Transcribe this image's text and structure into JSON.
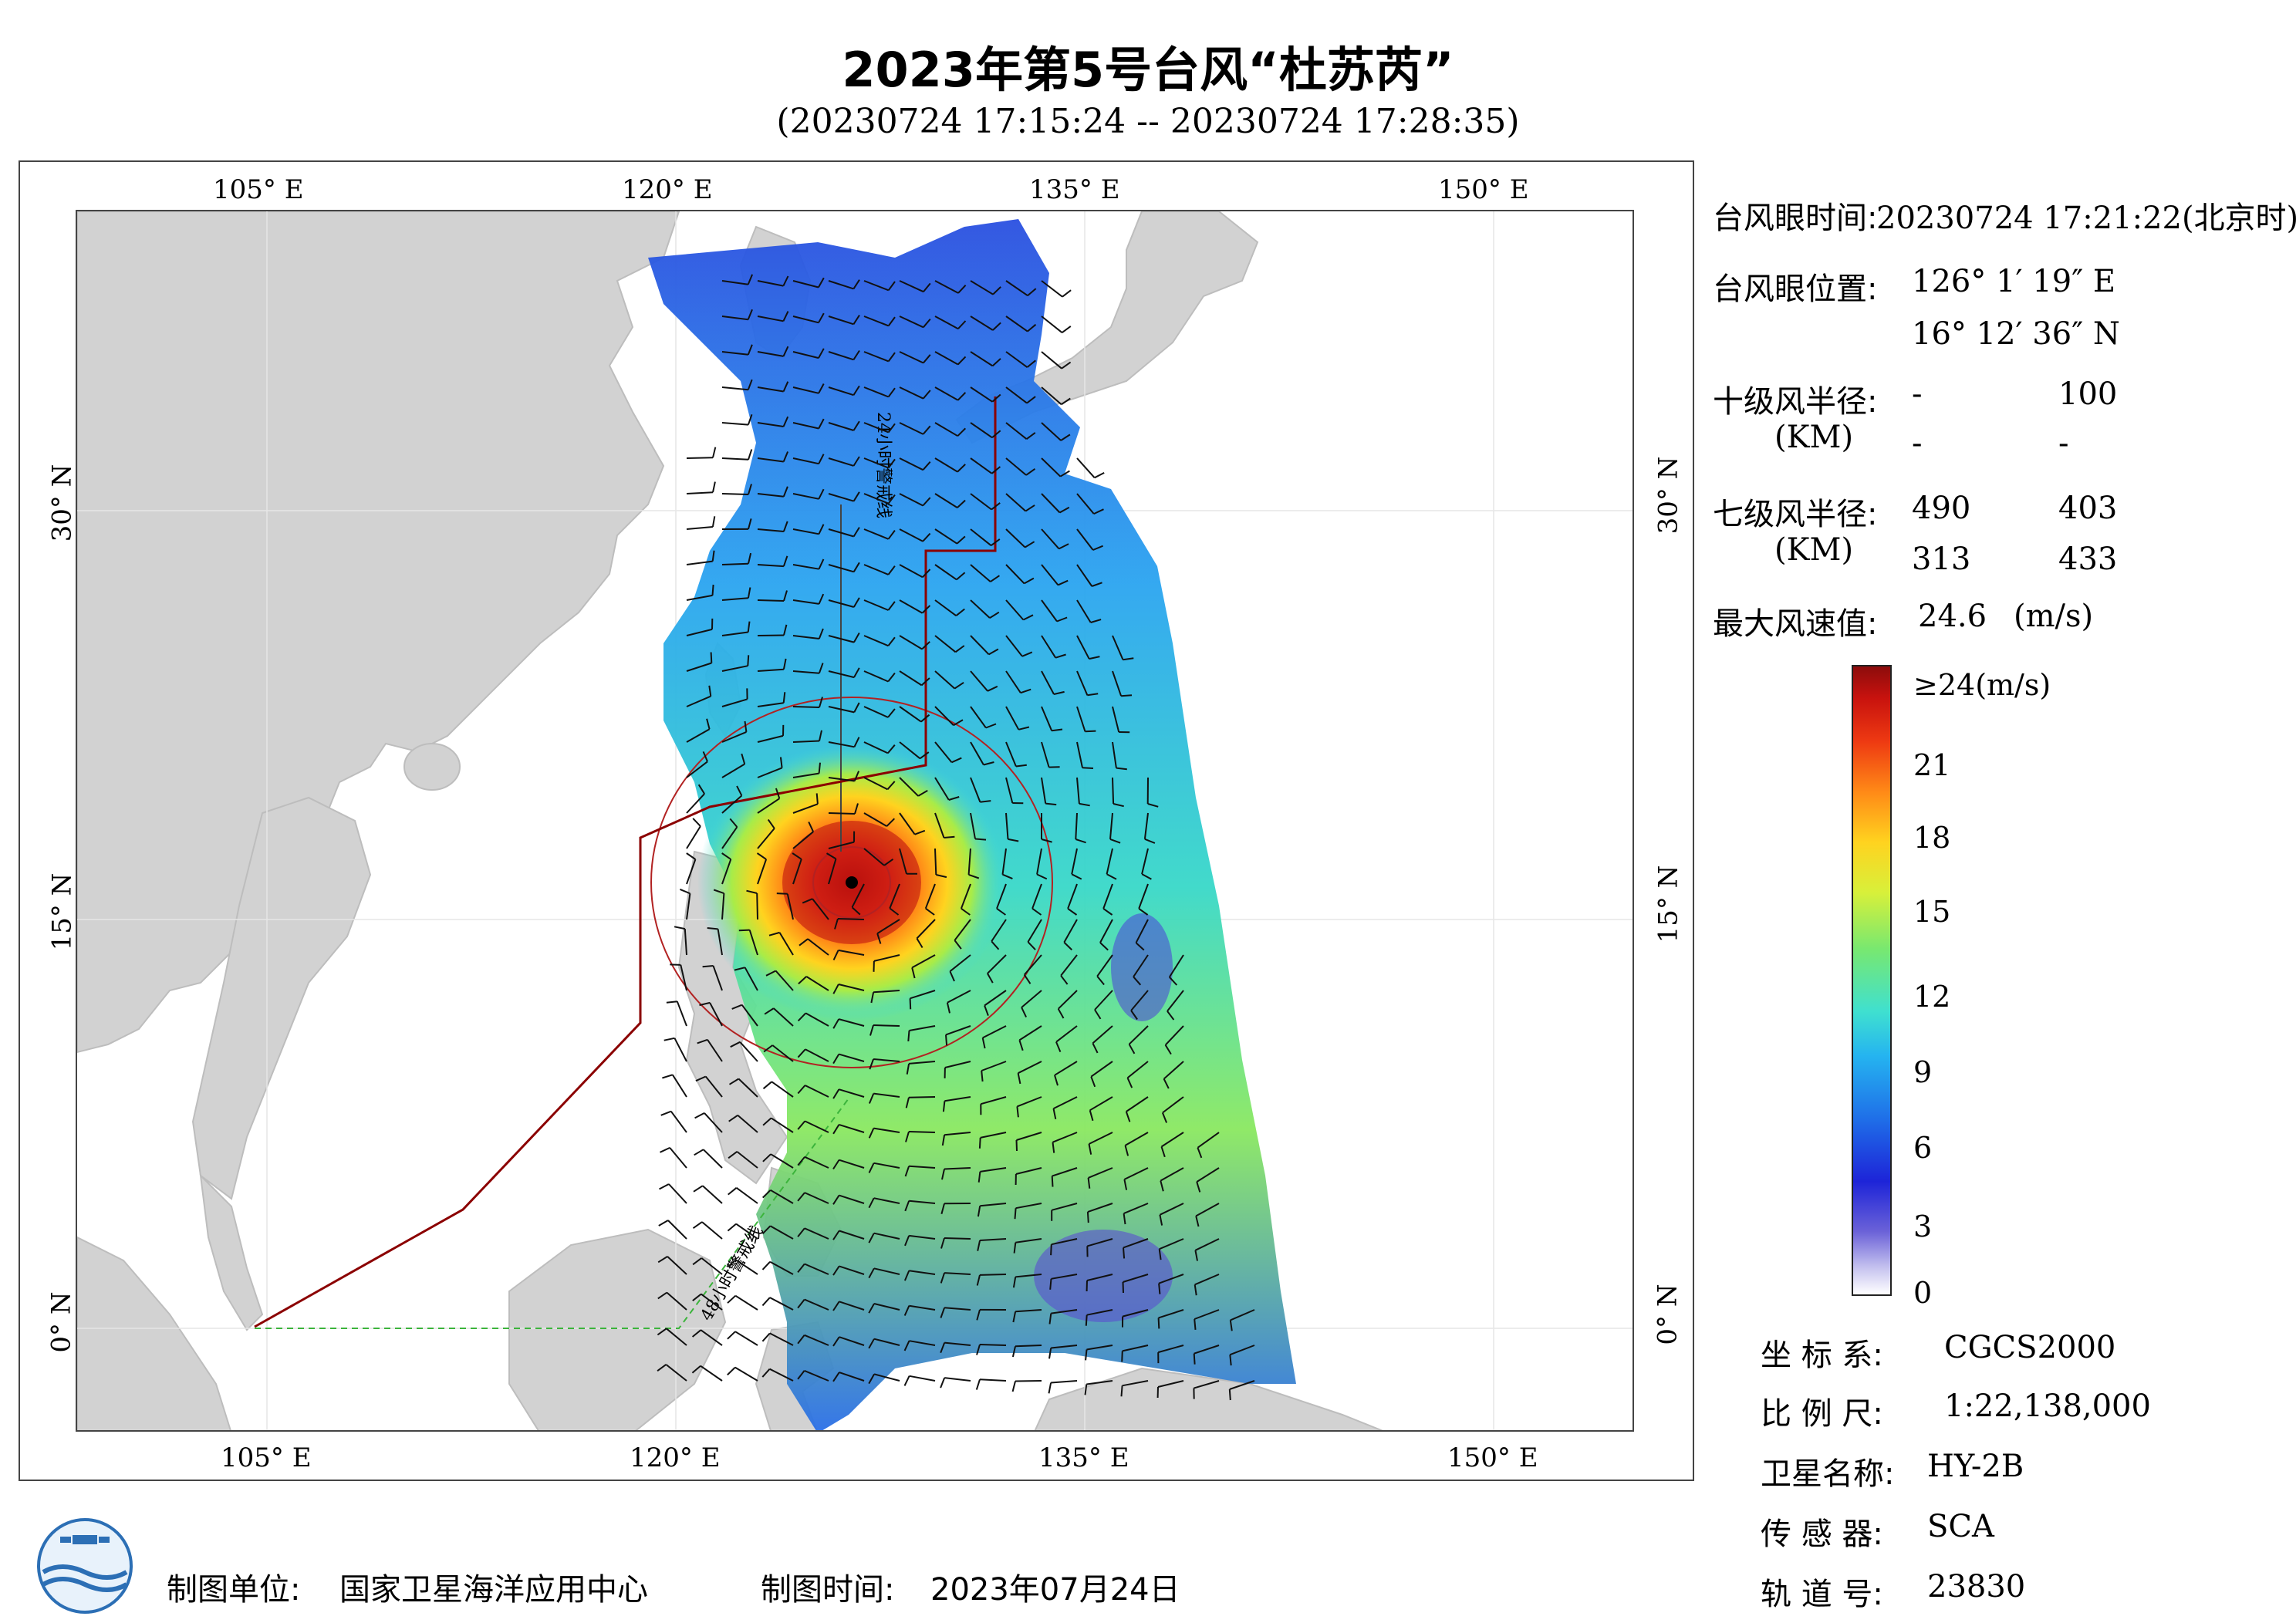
{
  "title": "2023年第5号台风“杜苏芮”",
  "subtitle": "(20230724 17:15:24 -- 20230724 17:28:35)",
  "axes": {
    "lon_labels": [
      "105° E",
      "120° E",
      "135° E",
      "150° E"
    ],
    "lat_labels": [
      "30° N",
      "15° N",
      "0° N"
    ]
  },
  "map_annotations": {
    "line_24h": "24小时警戒线",
    "line_48h": "48小时警戒线"
  },
  "info": {
    "eye_time_label": "台风眼时间:",
    "eye_time_value": "20230724 17:21:22(北京时)",
    "eye_pos_label": "台风眼位置:",
    "eye_lon": "126° 1′ 19″ E",
    "eye_lat": "16° 12′ 36″ N",
    "r10_label": "十级风半径:",
    "r10_unit": "(KM)",
    "r10_values": [
      "-",
      "100",
      "-",
      "-"
    ],
    "r7_label": "七级风半径:",
    "r7_unit": "(KM)",
    "r7_values": [
      "490",
      "403",
      "313",
      "433"
    ],
    "max_wind_label": "最大风速值:",
    "max_wind_value": "24.6",
    "max_wind_unit": "(m/s)"
  },
  "colorbar": {
    "ticks": [
      "≥24(m/s)",
      "21",
      "18",
      "15",
      "12",
      "9",
      "6",
      "3",
      "0"
    ],
    "min": 0,
    "max": 24
  },
  "meta": {
    "crs_label": "坐 标 系:",
    "crs_value": "CGCS2000",
    "scale_label": "比 例 尺:",
    "scale_value": "1:22,138,000",
    "sat_label": "卫星名称:",
    "sat_value": "HY-2B",
    "sensor_label": "传 感 器:",
    "sensor_value": "SCA",
    "orbit_label": "轨 道 号:",
    "orbit_value": "23830"
  },
  "footer": {
    "producer_label": "制图单位:",
    "producer_value": "国家卫星海洋应用中心",
    "date_label": "制图时间:",
    "date_value": "2023年07月24日"
  },
  "colors": {
    "land": "#d2d2d2",
    "warning_line_24h": "#8b0000",
    "warning_line_48h": "#3cb43c",
    "wind_low": "#1d24d8",
    "wind_high": "#c8120e"
  }
}
